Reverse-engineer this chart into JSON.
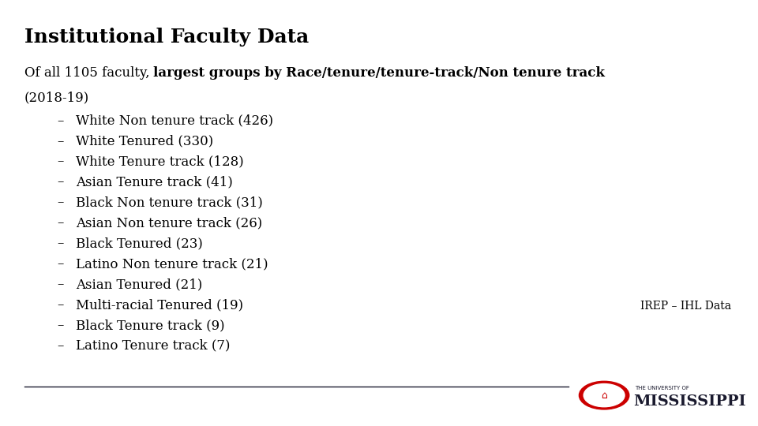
{
  "title": "Institutional Faculty Data",
  "intro_normal": "Of all 1105 faculty, ",
  "intro_bold": "largest groups by Race/tenure/tenure-track/Non tenure track",
  "intro_year": "(2018-19)",
  "bullet_items": [
    "White Non tenure track (426)",
    "White Tenured (330)",
    "White Tenure track (128)",
    "Asian Tenure track (41)",
    "Black Non tenure track (31)",
    "Asian Non tenure track (26)",
    "Black Tenured (23)",
    "Latino Non tenure track (21)",
    "Asian Tenured (21)",
    "Multi-racial Tenured (19)",
    "Black Tenure track (9)",
    "Latino Tenure track (7)"
  ],
  "source_text": "IREP – IHL Data",
  "background_color": "#ffffff",
  "text_color": "#000000",
  "title_fontsize": 18,
  "body_fontsize": 12,
  "source_fontsize": 10,
  "dash": "–",
  "uni_text_small": "THE UNIVERSITY OF",
  "uni_text_large": "MISSISSIPPI",
  "line_color": "#1a1a2e",
  "circle_color": "#cc0000",
  "uni_text_color": "#1a1a2e"
}
